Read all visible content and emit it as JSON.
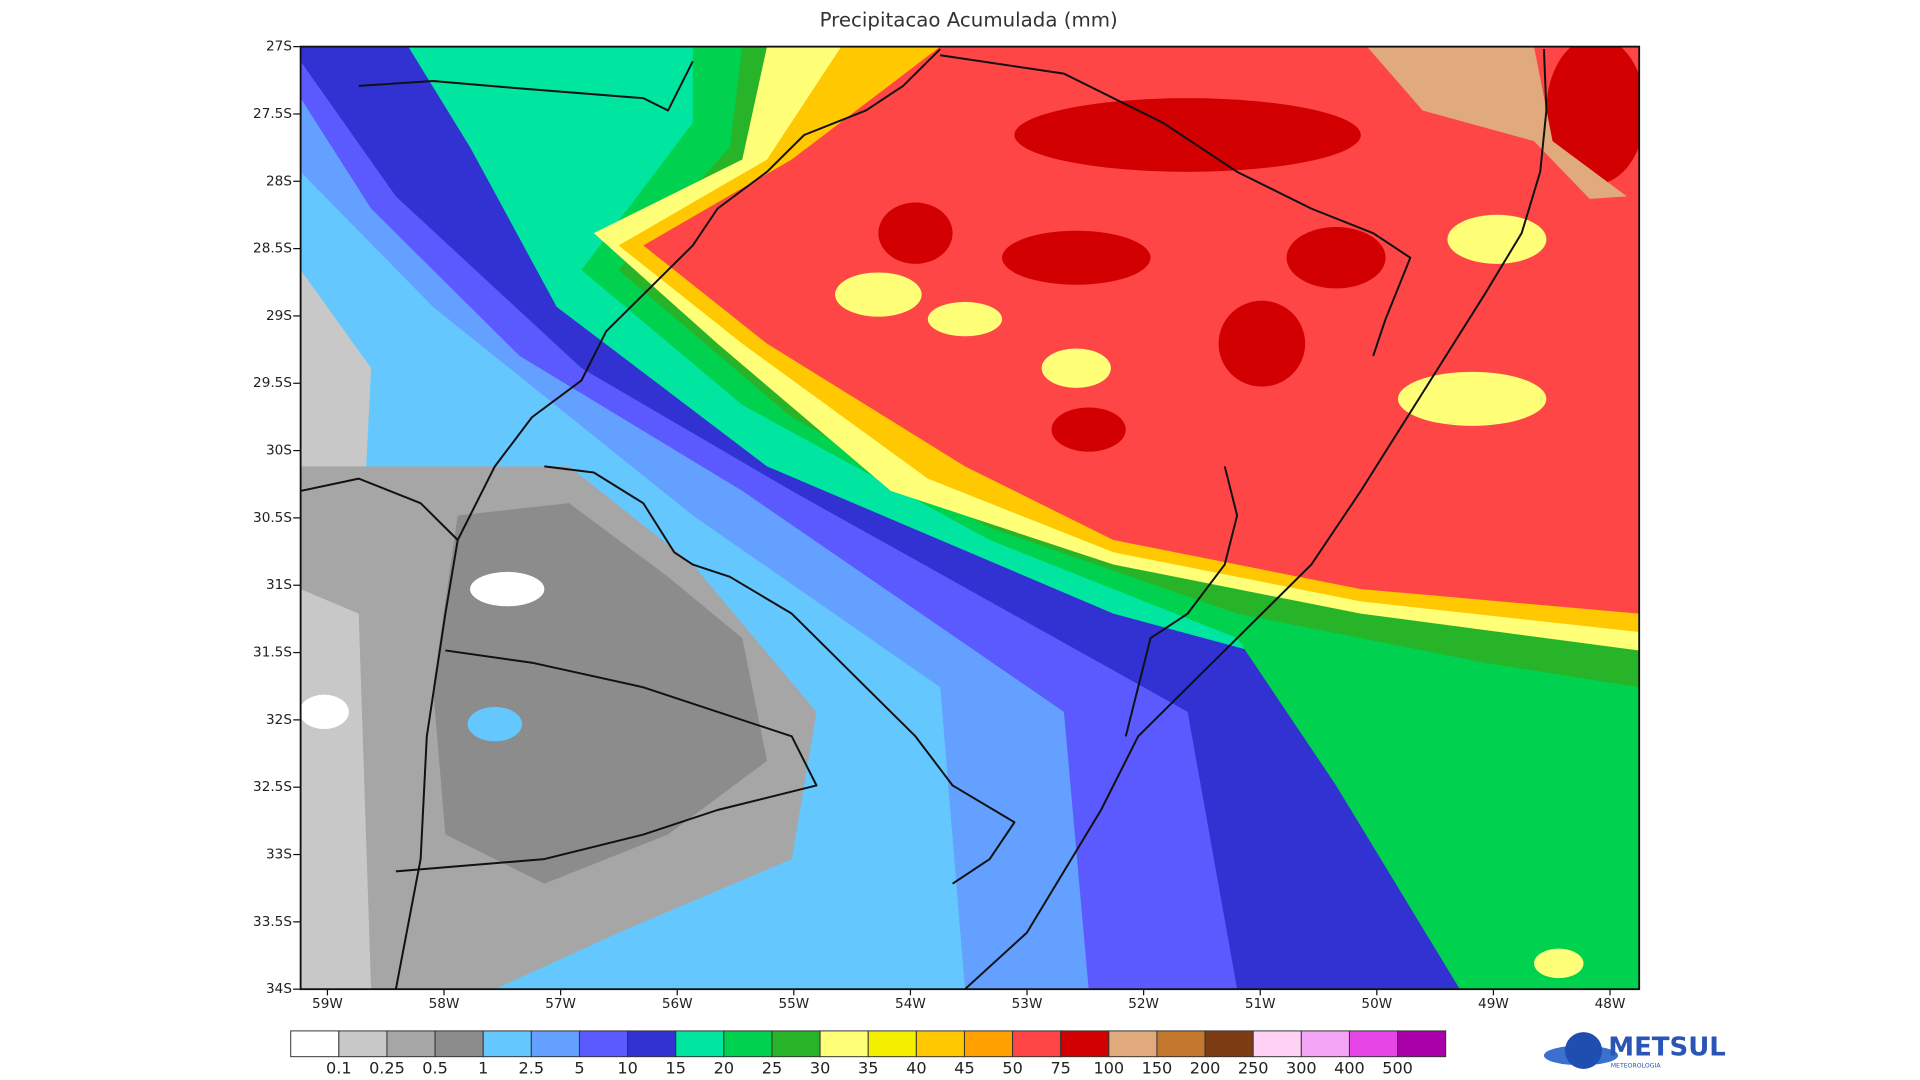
{
  "title": "Precipitacao Acumulada (mm)",
  "map": {
    "xlim": [
      -59.23,
      -47.75
    ],
    "ylim": [
      -34,
      -27
    ],
    "xticks": [
      {
        "value": -59,
        "label": "59W"
      },
      {
        "value": -58,
        "label": "58W"
      },
      {
        "value": -57,
        "label": "57W"
      },
      {
        "value": -56,
        "label": "56W"
      },
      {
        "value": -55,
        "label": "55W"
      },
      {
        "value": -54,
        "label": "54W"
      },
      {
        "value": -53,
        "label": "53W"
      },
      {
        "value": -52,
        "label": "52W"
      },
      {
        "value": -51,
        "label": "51W"
      },
      {
        "value": -50,
        "label": "50W"
      },
      {
        "value": -49,
        "label": "49W"
      },
      {
        "value": -48,
        "label": "48W"
      }
    ],
    "yticks": [
      {
        "value": -27,
        "label": "27S"
      },
      {
        "value": -27.5,
        "label": "27.5S"
      },
      {
        "value": -28,
        "label": "28S"
      },
      {
        "value": -28.5,
        "label": "28.5S"
      },
      {
        "value": -29,
        "label": "29S"
      },
      {
        "value": -29.5,
        "label": "29.5S"
      },
      {
        "value": -30,
        "label": "30S"
      },
      {
        "value": -30.5,
        "label": "30.5S"
      },
      {
        "value": -31,
        "label": "31S"
      },
      {
        "value": -31.5,
        "label": "31.5S"
      },
      {
        "value": -32,
        "label": "32S"
      },
      {
        "value": -32.5,
        "label": "32.5S"
      },
      {
        "value": -33,
        "label": "33S"
      },
      {
        "value": -33.5,
        "label": "33.5S"
      },
      {
        "value": -34,
        "label": "34S"
      }
    ]
  },
  "colorbar": {
    "levels": [
      0.1,
      0.25,
      0.5,
      1,
      2.5,
      5,
      10,
      15,
      20,
      25,
      30,
      35,
      40,
      45,
      50,
      75,
      100,
      150,
      200,
      250,
      300,
      400,
      500
    ],
    "colors": [
      "#ffffff",
      "#c8c8c8",
      "#a6a6a6",
      "#8c8c8c",
      "#64c8ff",
      "#64a0ff",
      "#5a5aff",
      "#3232d2",
      "#00e6a0",
      "#00d250",
      "#28b428",
      "#ffff78",
      "#f5f000",
      "#ffc800",
      "#ffa000",
      "#ff4646",
      "#d20000",
      "#e1aa7d",
      "#c3782d",
      "#7d3c14",
      "#ffd2f5",
      "#f5a5f5",
      "#e646e6",
      "#aa00aa"
    ]
  },
  "logo": {
    "name": "METSUL",
    "subtitle": "METEOROLOGIA"
  }
}
